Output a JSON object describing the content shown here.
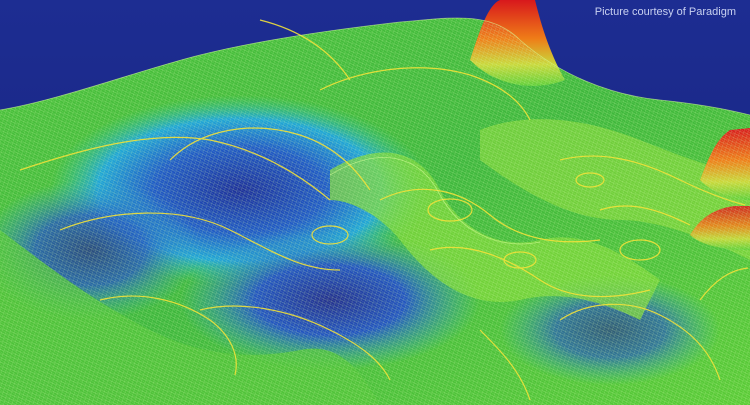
{
  "image": {
    "subject": "3D seismic surface visualization",
    "credit": "Picture courtesy of Paradigm"
  },
  "colors": {
    "background": "#1b2b8e",
    "surface_green": "#3fbf3a",
    "surface_lime": "#9be23a",
    "surface_cyan": "#1fb4d8",
    "surface_blue": "#1e5fc8",
    "surface_deep": "#243a9a",
    "peak_orange": "#f08a1a",
    "peak_red": "#d81e1e",
    "contour": "#f2e23a"
  }
}
